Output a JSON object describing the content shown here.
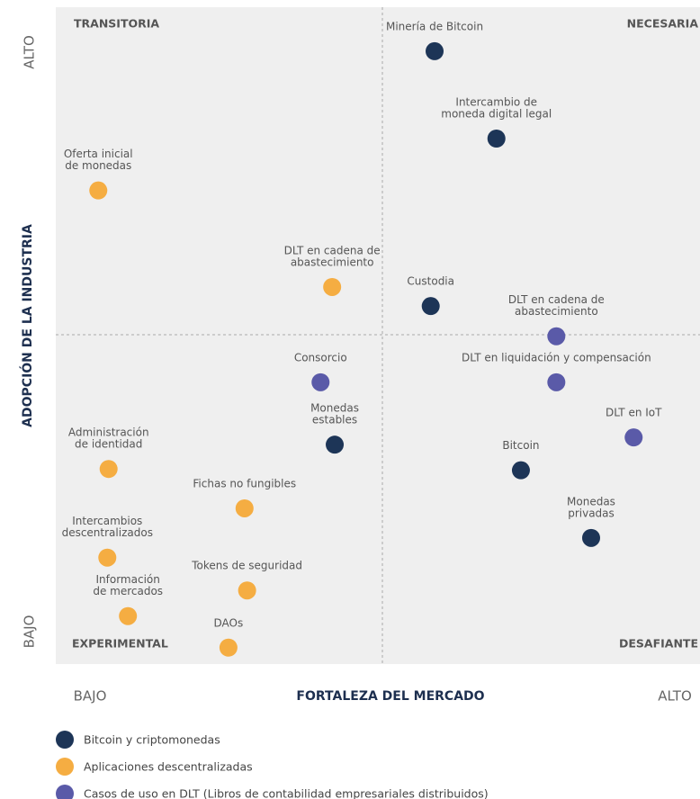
{
  "chart_data": {
    "type": "scatter",
    "xlim": [
      0,
      100
    ],
    "ylim": [
      0,
      100
    ],
    "x_label": "FORTALEZA DEL MERCADO",
    "y_label": "ADOPCIÓN DE LA INDUSTRIA",
    "x_end_labels": [
      "BAJO",
      "ALTO"
    ],
    "y_end_labels": [
      "BAJO",
      "ALTO"
    ],
    "quadrant_labels": {
      "top_left": "TRANSITORIA",
      "top_right": "NECESARIA",
      "bottom_left": "EXPERIMENTAL",
      "bottom_right": "DESAFIANTE"
    },
    "legend": "bottom left",
    "series": [
      {
        "name": "Bitcoin y criptomonedas",
        "color": "#1d3557",
        "x": [
          58.8,
          68.4,
          58.2,
          43.3,
          72.2,
          83.1
        ],
        "y": [
          93.3,
          80.0,
          54.5,
          33.4,
          29.5,
          19.2
        ],
        "labels": [
          [
            "Minería de Bitcoin"
          ],
          [
            "Intercambio de",
            "moneda digital legal"
          ],
          [
            "Custodia"
          ],
          [
            "Monedas",
            "estables"
          ],
          [
            "Bitcoin"
          ],
          [
            "Monedas",
            "privadas"
          ]
        ]
      },
      {
        "name": "Aplicaciones descentralizadas",
        "color": "#f5ad42",
        "x": [
          6.6,
          42.9,
          8.2,
          29.3,
          8.0,
          29.7,
          11.2,
          26.8
        ],
        "y": [
          72.1,
          57.4,
          29.7,
          23.7,
          16.2,
          11.2,
          7.3,
          2.5
        ],
        "labels": [
          [
            "Oferta inicial",
            "de monedas"
          ],
          [
            "DLT en cadena de",
            "abastecimiento"
          ],
          [
            "Administración",
            "de identidad"
          ],
          [
            "Fichas no fungibles"
          ],
          [
            "Intercambios",
            "descentralizados"
          ],
          [
            "Tokens de seguridad"
          ],
          [
            "Información",
            "de mercados"
          ],
          [
            "DAOs"
          ]
        ]
      },
      {
        "name": "Casos de uso en DLT (Libros de contabilidad empresariales distribuidos)",
        "color": "#5a5aa8",
        "x": [
          77.7,
          41.1,
          77.7,
          89.7
        ],
        "y": [
          49.9,
          42.9,
          42.9,
          34.5
        ],
        "labels": [
          [
            "DLT en cadena de",
            "abastecimiento"
          ],
          [
            "Consorcio"
          ],
          [
            "DLT en liquidación y compensación"
          ],
          [
            "DLT en IoT"
          ]
        ]
      }
    ]
  }
}
